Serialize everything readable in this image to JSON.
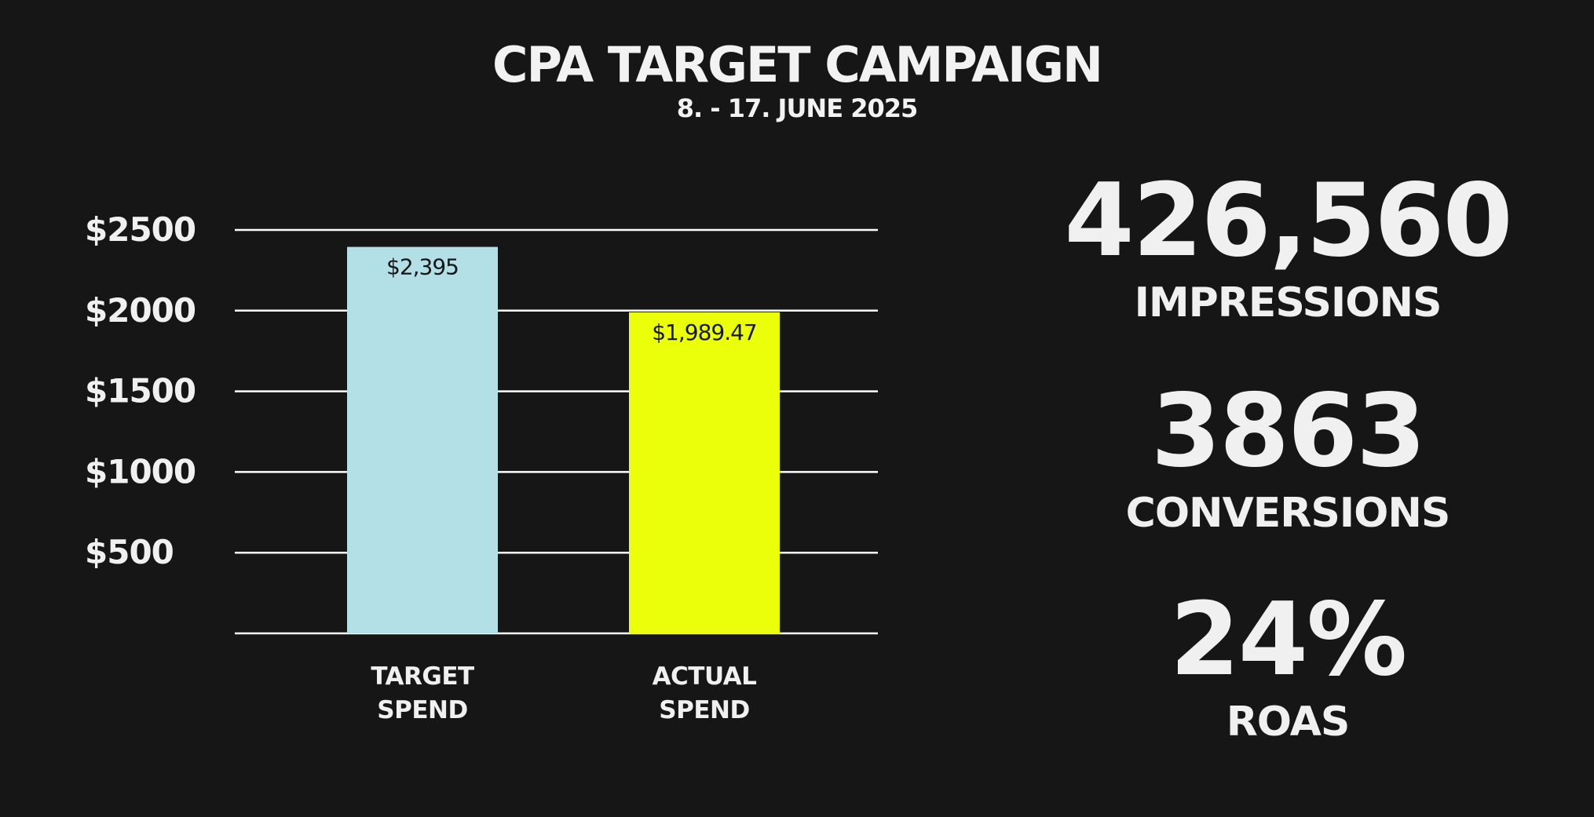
{
  "header": {
    "title": "CPA TARGET CAMPAIGN",
    "subtitle": "8. - 17. JUNE 2025"
  },
  "chart_data": {
    "type": "bar",
    "categories": [
      [
        "TARGET",
        "SPEND"
      ],
      [
        "ACTUAL",
        "SPEND"
      ]
    ],
    "values": [
      2395,
      1989.47
    ],
    "value_labels": [
      "$2,395",
      "$1,989.47"
    ],
    "bar_colors": [
      "#b3e0e6",
      "#ebff0a"
    ],
    "ylim": [
      0,
      2500
    ],
    "yticks": [
      500,
      1000,
      1500,
      2000,
      2500
    ],
    "ytick_labels": [
      "$500",
      "$1000",
      "$1500",
      "$2000",
      "$2500"
    ],
    "grid": true,
    "xlabel": "",
    "ylabel": ""
  },
  "stats": [
    {
      "value": "426,560",
      "label": "IMPRESSIONS"
    },
    {
      "value": "3863",
      "label": "CONVERSIONS"
    },
    {
      "value": "24%",
      "label": "ROAS"
    }
  ],
  "colors": {
    "background": "#161616",
    "text": "#f0f0f0",
    "grid": "#ffffff"
  }
}
